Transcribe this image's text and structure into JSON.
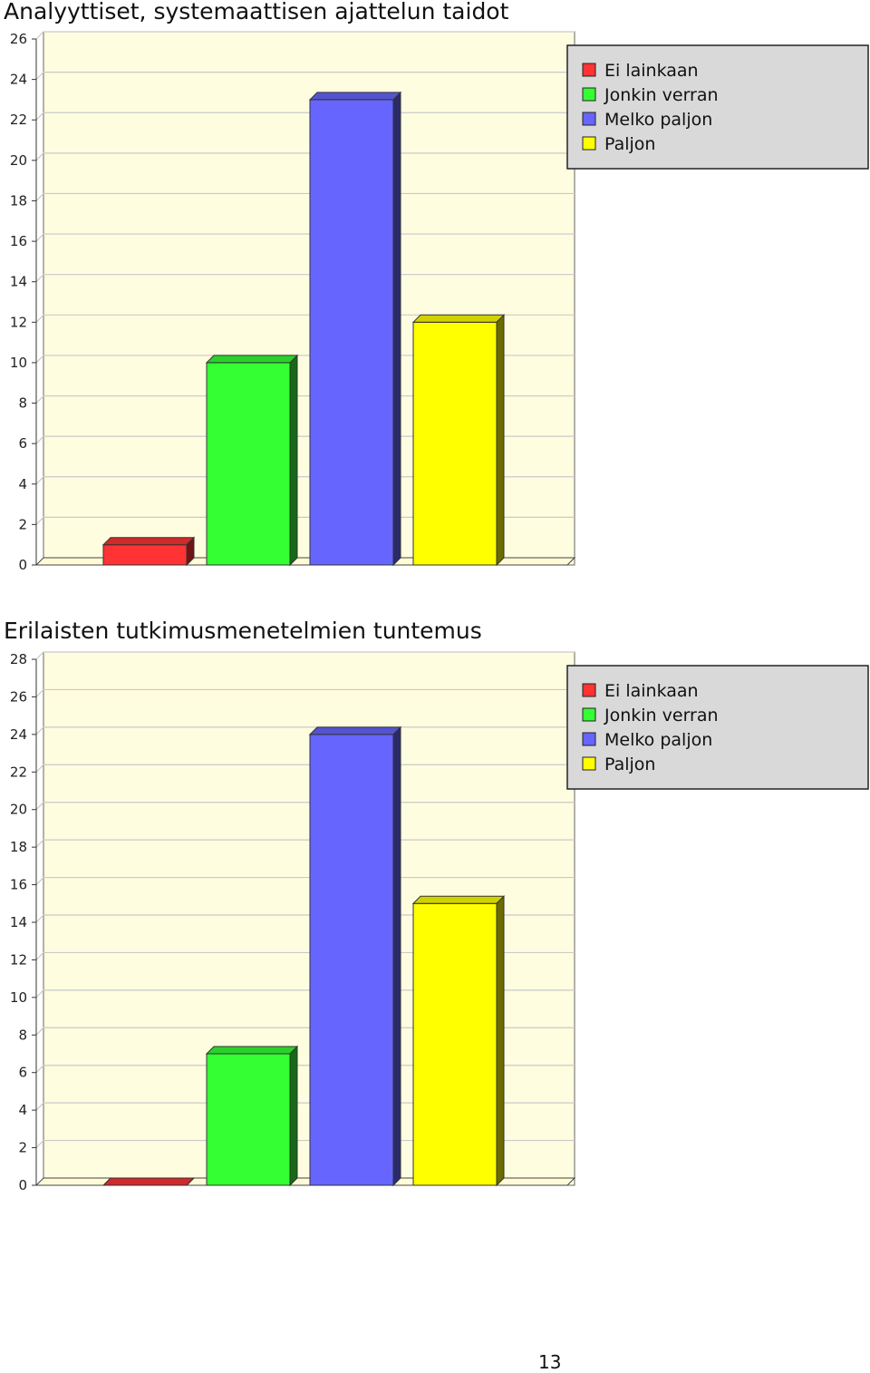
{
  "charts": [
    {
      "id": "analytical-skills",
      "title": "Analyyttiset, systemaattisen ajattelun taidot"
    },
    {
      "id": "research-methods",
      "title": "Erilaisten tutkimusmenetelmien tuntemus"
    }
  ],
  "colors": {
    "ei_lainkaan": "#ff3333",
    "jonkin_verran": "#33ff33",
    "melko_paljon": "#6666ff",
    "paljon": "#ffff00",
    "plot_background": "#fffde0",
    "legend_background": "#d9d9d9"
  },
  "chart_data": [
    {
      "type": "bar",
      "title": "Analyyttiset, systemaattisen ajattelun taidot",
      "categories": [
        "Ei lainkaan",
        "Jonkin verran",
        "Melko paljon",
        "Paljon"
      ],
      "values": [
        1,
        10,
        23,
        12
      ],
      "ylim": [
        0,
        26
      ],
      "yticks": [
        0,
        2,
        4,
        6,
        8,
        10,
        12,
        14,
        16,
        18,
        20,
        22,
        24,
        26
      ],
      "legend": [
        "Ei lainkaan",
        "Jonkin verran",
        "Melko paljon",
        "Paljon"
      ],
      "legend_position": "top-right",
      "grid": true,
      "style": "3d"
    },
    {
      "type": "bar",
      "title": "Erilaisten tutkimusmenetelmien tuntemus",
      "categories": [
        "Ei lainkaan",
        "Jonkin verran",
        "Melko paljon",
        "Paljon"
      ],
      "values": [
        0,
        7,
        24,
        15
      ],
      "ylim": [
        0,
        28
      ],
      "yticks": [
        0,
        2,
        4,
        6,
        8,
        10,
        12,
        14,
        16,
        18,
        20,
        22,
        24,
        26,
        28
      ],
      "legend": [
        "Ei lainkaan",
        "Jonkin verran",
        "Melko paljon",
        "Paljon"
      ],
      "legend_position": "top-right",
      "grid": true,
      "style": "3d"
    }
  ],
  "page_number": "13"
}
